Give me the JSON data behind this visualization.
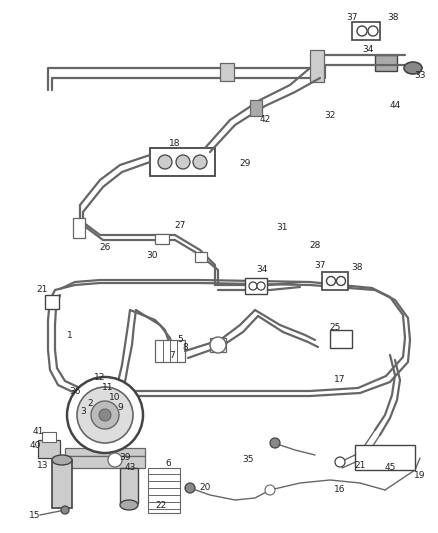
{
  "bg_color": "#ffffff",
  "line_color": "#666666",
  "dark_color": "#444444",
  "figsize": [
    4.38,
    5.33
  ],
  "dpi": 100,
  "lw_pipe": 1.6,
  "lw_thin": 1.0,
  "label_fs": 6.5
}
